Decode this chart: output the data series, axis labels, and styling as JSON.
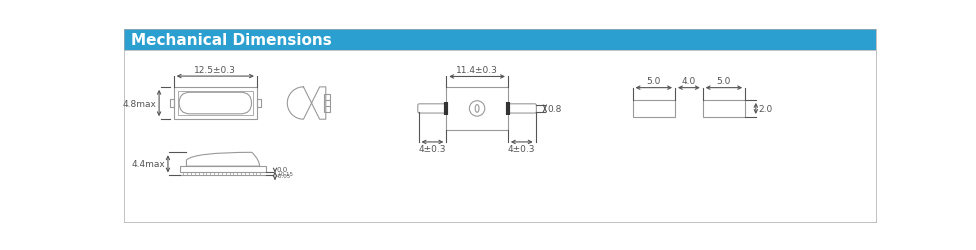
{
  "title": "Mechanical Dimensions",
  "title_bg": "#2A9FD0",
  "title_color": "#ffffff",
  "line_color": "#999999",
  "dim_color": "#555555",
  "bg_color": "#ffffff",
  "border_color": "#cccccc"
}
